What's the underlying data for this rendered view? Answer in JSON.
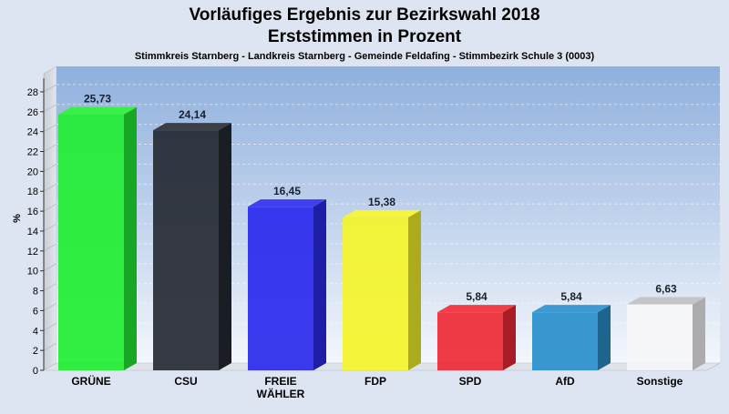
{
  "chart_data": {
    "type": "bar",
    "title": "Vorläufiges Ergebnis zur Bezirkswahl 2018",
    "subtitle": "Erststimmen in Prozent",
    "subsubtitle": "Stimmkreis Starnberg - Landkreis Starnberg - Gemeinde Feldafing - Stimmbezirk Schule 3 (0003)",
    "ylabel": "%",
    "ylim": [
      0,
      29
    ],
    "yticks": [
      0,
      2,
      4,
      6,
      8,
      10,
      12,
      14,
      16,
      18,
      20,
      22,
      24,
      26,
      28
    ],
    "grid": true,
    "categories": [
      "GRÜNE",
      "CSU",
      "FREIE WÄHLER",
      "FDP",
      "SPD",
      "AfD",
      "Sonstige"
    ],
    "category_lines": [
      [
        "GRÜNE"
      ],
      [
        "CSU"
      ],
      [
        "FREIE",
        "WÄHLER"
      ],
      [
        "FDP"
      ],
      [
        "SPD"
      ],
      [
        "AfD"
      ],
      [
        "Sonstige"
      ]
    ],
    "values": [
      25.73,
      24.14,
      16.45,
      15.38,
      5.84,
      5.84,
      6.63
    ],
    "value_labels": [
      "25,73",
      "24,14",
      "16,45",
      "15,38",
      "5,84",
      "5,84",
      "6,63"
    ],
    "colors": [
      "#22ee33",
      "#262a33",
      "#2a2aee",
      "#f4f42a",
      "#ee2a35",
      "#2a8fcc",
      "#f6f6fa"
    ]
  }
}
